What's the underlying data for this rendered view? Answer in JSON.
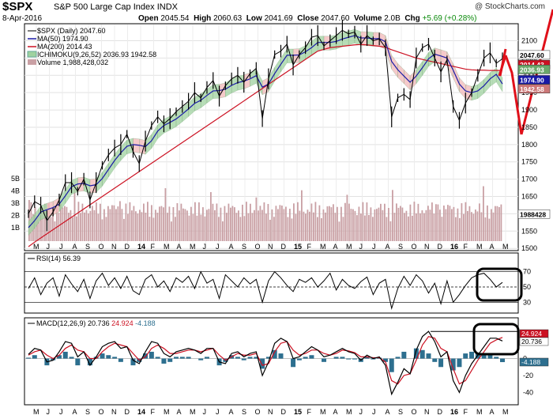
{
  "header": {
    "symbol": "$SPX",
    "name": "S&P 500 Large Cap Index",
    "exchange": "INDX",
    "date": "8-Apr-2016",
    "open_label": "Open",
    "open": "2045.54",
    "high_label": "High",
    "high": "2060.63",
    "low_label": "Low",
    "low": "2041.69",
    "close_label": "Close",
    "close": "2047.60",
    "volume_label": "Volume",
    "volume": "2.0B",
    "chg_label": "Chg",
    "chg": "+5.69 (+0.28%)",
    "watermark": "@ StockCharts.com"
  },
  "legend": {
    "price": "$SPX (Daily) 2047.60",
    "ma50": "MA(50) 1974.90",
    "ma200": "MA(200) 2014.43",
    "ichimoku": "ICHIMOKU(9,26,52) 2036.93 1942.58",
    "volume": "Volume 1,988,428,032",
    "rsi": "RSI(14) 56.39",
    "macd_name": "MACD(12,26,9)",
    "macd_v1": "20.736",
    "macd_v2": "24.924",
    "macd_v3": "-4.188"
  },
  "colors": {
    "price": "#000000",
    "ma50": "#1a1aa6",
    "ma200": "#cc1122",
    "cloud_up": "#9fd29f",
    "cloud_down": "#f2b8b8",
    "volume": "#c9a0a4",
    "macd_hist": "#2d6f8f",
    "annotation": "#e0101a"
  },
  "chart_data": [
    {
      "type": "line",
      "title": "$SPX (Daily) price with MA(50), MA(200), Ichimoku cloud and volume",
      "x_months": [
        "M",
        "J",
        "J",
        "A",
        "S",
        "O",
        "N",
        "D",
        "14",
        "F",
        "M",
        "A",
        "M",
        "J",
        "J",
        "A",
        "S",
        "O",
        "N",
        "D",
        "15",
        "F",
        "M",
        "A",
        "M",
        "J",
        "J",
        "A",
        "S",
        "O",
        "N",
        "D",
        "16",
        "F",
        "M",
        "A",
        "M"
      ],
      "y_ticks": [
        1500,
        1550,
        1600,
        1650,
        1700,
        1750,
        1800,
        1850,
        1900,
        1950,
        2000,
        2050,
        2100
      ],
      "ylim": [
        1505,
        2140
      ],
      "volume_ticks": [
        "1B",
        "2B",
        "3B",
        "4B",
        "5B"
      ],
      "price_labels": {
        "close": "2047.60",
        "ma200": "2014.43",
        "ichimoku_a": "2036.93",
        "ma50": "1974.90",
        "ichimoku_b": "1942.58",
        "volume": "1988428"
      },
      "price": [
        1600,
        1635,
        1625,
        1580,
        1605,
        1640,
        1690,
        1690,
        1665,
        1700,
        1640,
        1690,
        1740,
        1770,
        1790,
        1800,
        1830,
        1780,
        1745,
        1810,
        1855,
        1880,
        1860,
        1875,
        1895,
        1910,
        1925,
        1950,
        1935,
        1965,
        1985,
        1940,
        1970,
        1990,
        2000,
        1980,
        2005,
        2020,
        1875,
        1990,
        2060,
        2070,
        2090,
        2030,
        2060,
        2080,
        2110,
        2115,
        2085,
        2100,
        2115,
        2130,
        2120,
        2125,
        2090,
        2115,
        2100,
        2105,
        2080,
        1880,
        1935,
        1945,
        1930,
        2050,
        2080,
        2090,
        2050,
        2010,
        2045,
        1910,
        1870,
        1920,
        1950,
        2000,
        2050,
        2065,
        2035,
        2048
      ],
      "ma50": [
        1560,
        1580,
        1605,
        1612,
        1618,
        1628,
        1652,
        1678,
        1686,
        1688,
        1681,
        1684,
        1702,
        1728,
        1754,
        1776,
        1795,
        1800,
        1798,
        1794,
        1811,
        1839,
        1855,
        1864,
        1874,
        1888,
        1903,
        1919,
        1928,
        1942,
        1955,
        1956,
        1960,
        1971,
        1979,
        1983,
        1990,
        1999,
        1966,
        1975,
        2005,
        2032,
        2058,
        2058,
        2059,
        2068,
        2080,
        2095,
        2095,
        2095,
        2098,
        2105,
        2110,
        2115,
        2108,
        2108,
        2106,
        2106,
        2097,
        2040,
        2016,
        1998,
        1980,
        1998,
        2022,
        2048,
        2061,
        2056,
        2050,
        2015,
        1975,
        1955,
        1950,
        1955,
        1970,
        1990,
        2003,
        1975
      ],
      "ma200": [
        1505,
        1518,
        1530,
        1542,
        1554,
        1566,
        1578,
        1590,
        1602,
        1614,
        1626,
        1638,
        1650,
        1662,
        1674,
        1686,
        1698,
        1710,
        1722,
        1734,
        1746,
        1758,
        1770,
        1782,
        1794,
        1806,
        1818,
        1830,
        1842,
        1854,
        1866,
        1878,
        1890,
        1902,
        1914,
        1926,
        1938,
        1950,
        1962,
        1974,
        1986,
        1998,
        2010,
        2022,
        2034,
        2046,
        2058,
        2070,
        2075,
        2080,
        2082,
        2084,
        2086,
        2088,
        2089,
        2088,
        2086,
        2084,
        2081,
        2074,
        2068,
        2062,
        2056,
        2050,
        2046,
        2042,
        2038,
        2034,
        2030,
        2026,
        2022,
        2018,
        2016,
        2015,
        2015,
        2014,
        2014,
        2014
      ]
    },
    {
      "type": "line",
      "title": "RSI(14) 56.39",
      "ylim": [
        20,
        80
      ],
      "y_ticks": [
        30,
        50,
        70
      ],
      "rsi": [
        48,
        62,
        40,
        55,
        62,
        38,
        66,
        54,
        44,
        60,
        35,
        58,
        68,
        52,
        62,
        48,
        64,
        45,
        40,
        60,
        66,
        50,
        58,
        44,
        62,
        56,
        64,
        48,
        70,
        55,
        60,
        35,
        66,
        58,
        50,
        62,
        54,
        60,
        30,
        58,
        70,
        62,
        52,
        44,
        60,
        56,
        62,
        50,
        58,
        68,
        46,
        60,
        52,
        48,
        57,
        63,
        40,
        55,
        60,
        22,
        48,
        64,
        52,
        66,
        58,
        42,
        55,
        28,
        58,
        30,
        40,
        52,
        62,
        66,
        68,
        60,
        50,
        56
      ]
    },
    {
      "type": "line",
      "title": "MACD(12,26,9) 20.736 24.924 -4.188",
      "ylim": [
        -48,
        35
      ],
      "y_ticks": [
        -40,
        -20,
        0,
        20
      ],
      "macd": [
        5,
        12,
        10,
        -4,
        -2,
        8,
        20,
        18,
        2,
        8,
        -8,
        2,
        14,
        18,
        20,
        12,
        14,
        -2,
        -6,
        8,
        20,
        18,
        6,
        2,
        8,
        10,
        12,
        10,
        6,
        12,
        12,
        -4,
        -6,
        6,
        8,
        2,
        6,
        8,
        -20,
        -4,
        18,
        24,
        20,
        0,
        2,
        8,
        14,
        10,
        2,
        4,
        8,
        12,
        8,
        6,
        -2,
        4,
        0,
        2,
        -8,
        -42,
        -28,
        -12,
        -18,
        10,
        26,
        32,
        20,
        2,
        8,
        -26,
        -40,
        -20,
        -6,
        4,
        14,
        24,
        24,
        20.7
      ],
      "signal": [
        4,
        8,
        10,
        4,
        0,
        4,
        12,
        16,
        10,
        8,
        0,
        0,
        8,
        14,
        18,
        16,
        14,
        6,
        -2,
        2,
        12,
        16,
        12,
        6,
        6,
        8,
        10,
        10,
        8,
        10,
        12,
        4,
        -2,
        2,
        6,
        4,
        4,
        6,
        -8,
        -6,
        8,
        18,
        20,
        10,
        4,
        6,
        10,
        10,
        6,
        4,
        6,
        10,
        9,
        7,
        2,
        2,
        1,
        1,
        -4,
        -26,
        -30,
        -20,
        -18,
        -2,
        16,
        26,
        24,
        12,
        8,
        -12,
        -30,
        -26,
        -14,
        -2,
        8,
        18,
        22,
        24.9
      ]
    }
  ],
  "annotations": {
    "rsi_box": "RSI highlight",
    "macd_box": "MACD highlight"
  }
}
